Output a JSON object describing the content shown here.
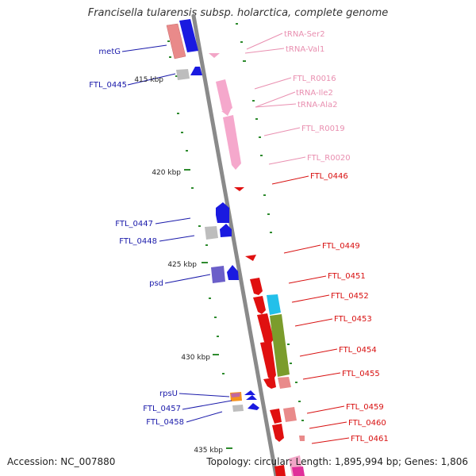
{
  "title": "Francisella tularensis subsp. holarctica, complete genome",
  "footer": {
    "accession": "Accession: NC_007880",
    "topology": "Topology: circular; Length: 1,895,994 bp; Genes: 1,806"
  },
  "colors": {
    "left_label": "#1a1aaa",
    "trna_label": "#e98fb0",
    "right_label": "#d81010",
    "backbone": "#8a8a8a",
    "tick": "#2e8b2e"
  },
  "scale_labels": [
    "415 kbp",
    "420 kbp",
    "425 kbp",
    "430 kbp",
    "435 kbp"
  ],
  "left_labels": [
    "metG",
    "FTL_0445",
    "FTL_0447",
    "FTL_0448",
    "psd",
    "rpsU",
    "FTL_0457",
    "FTL_0458"
  ],
  "right_labels": [
    "tRNA-Ser2",
    "tRNA-Val1",
    "FTL_R0016",
    "tRNA-Ile2",
    "tRNA-Ala2",
    "FTL_R0019",
    "FTL_R0020",
    "FTL_0446",
    "FTL_0449",
    "FTL_0451",
    "FTL_0452",
    "FTL_0453",
    "FTL_0454",
    "FTL_0455",
    "FTL_0459",
    "FTL_0460",
    "FTL_0461"
  ]
}
